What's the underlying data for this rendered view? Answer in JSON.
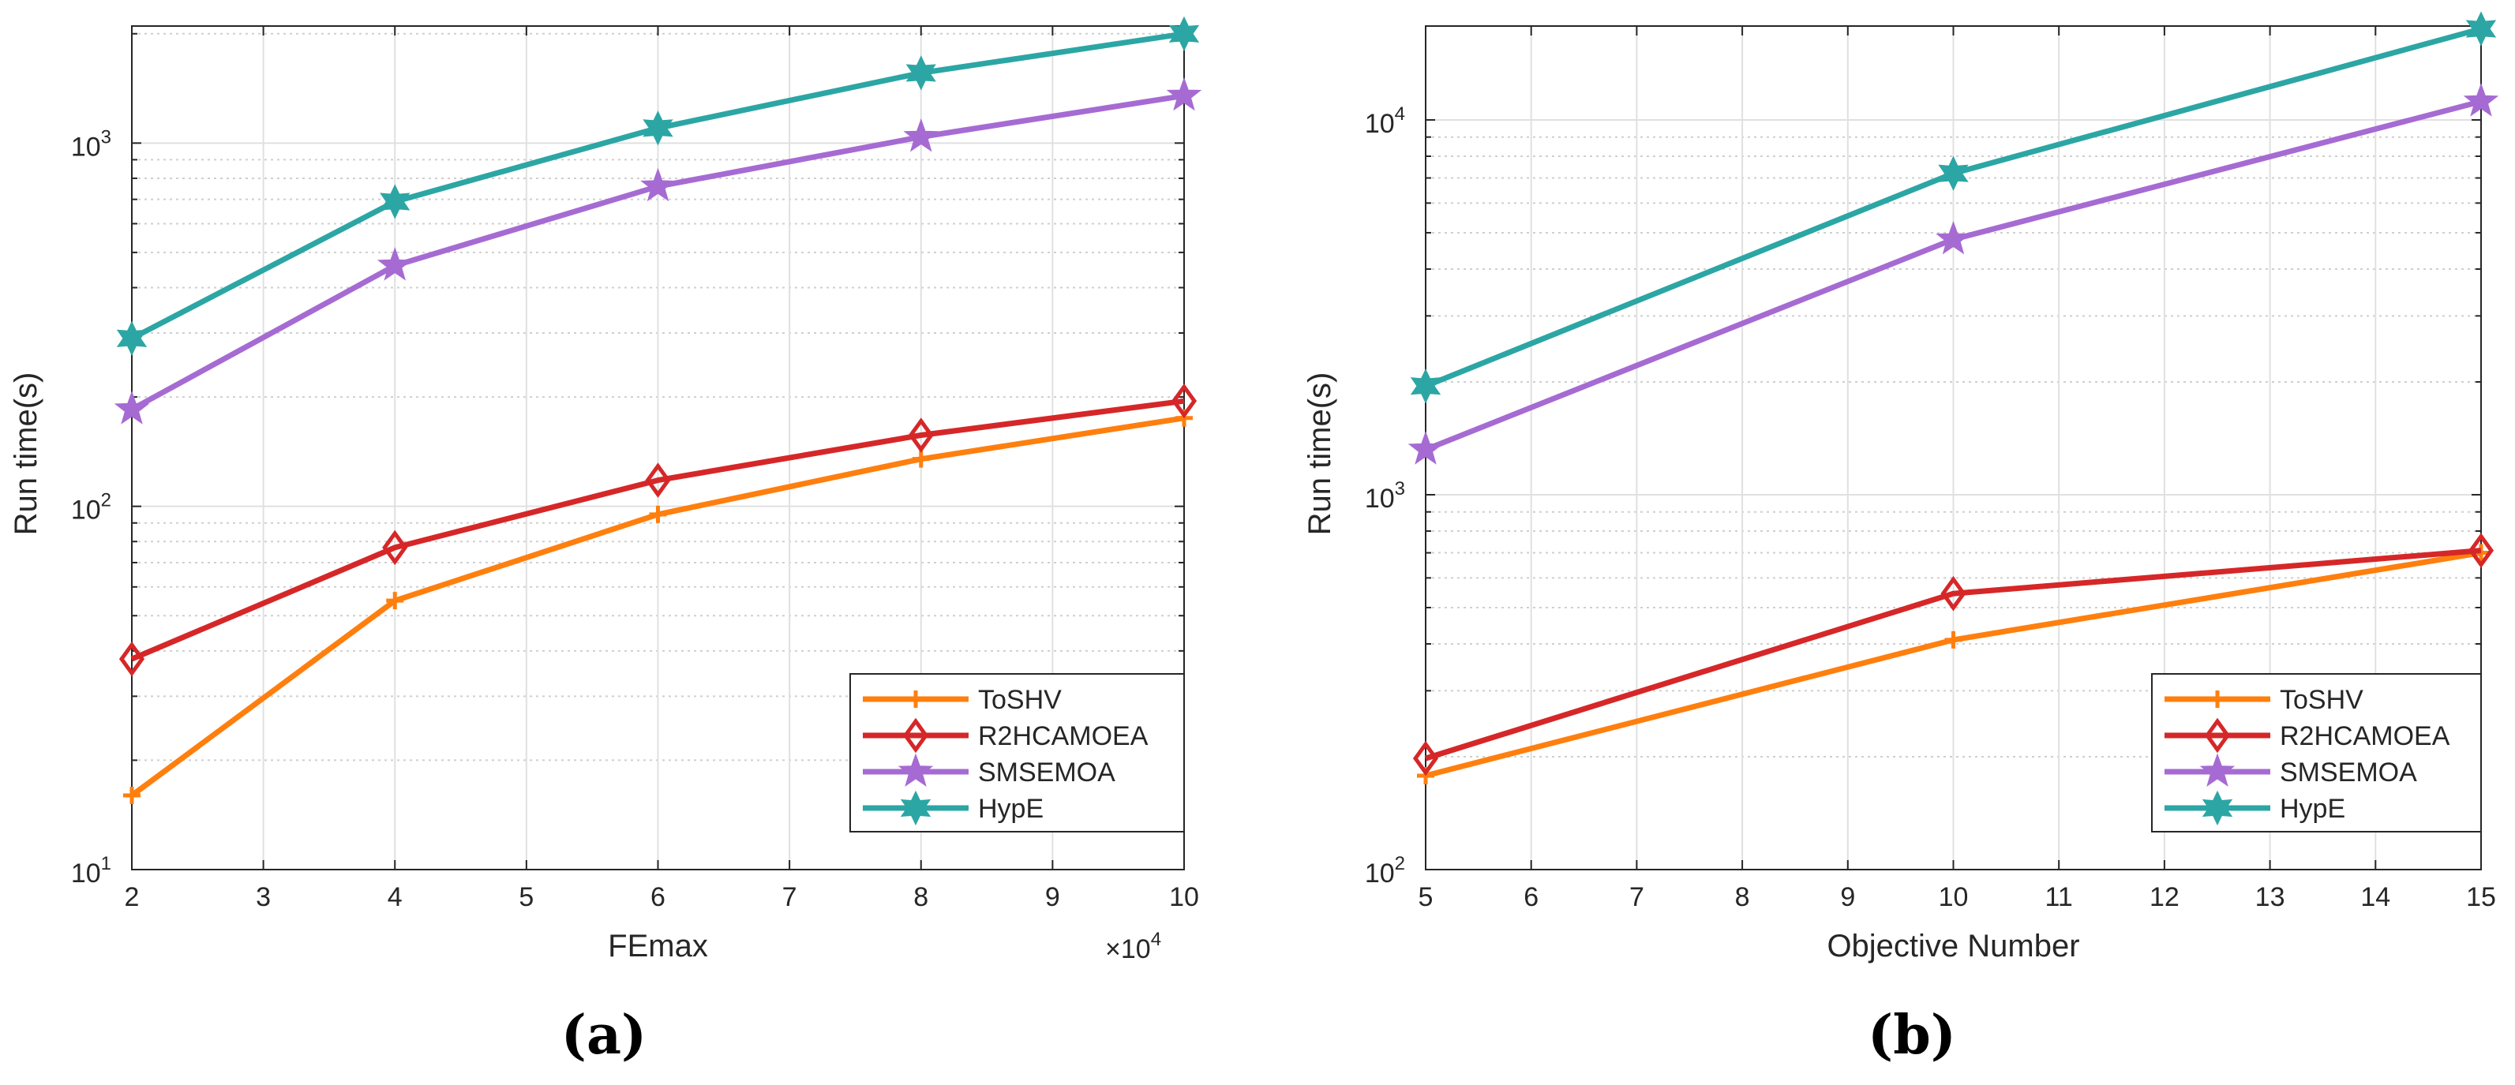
{
  "chart_data": [
    {
      "id": "a",
      "type": "line",
      "caption": "(a)",
      "xlabel": "FEmax",
      "ylabel": "Run time(s)",
      "x_exponent_label": "×10",
      "x_exponent_power": "4",
      "xlim": [
        2,
        10
      ],
      "xticks": [
        "2",
        "3",
        "4",
        "5",
        "6",
        "7",
        "8",
        "9",
        "10"
      ],
      "yscale": "log",
      "ylim": [
        10,
        2100
      ],
      "yticks": [
        {
          "base": "10",
          "exp": "1",
          "value": 10
        },
        {
          "base": "10",
          "exp": "2",
          "value": 100
        },
        {
          "base": "10",
          "exp": "3",
          "value": 1000
        }
      ],
      "legend_position": "bottom-right",
      "x": [
        2,
        4,
        6,
        8,
        10
      ],
      "series": [
        {
          "name": "ToSHV",
          "color": "#FF7F0E",
          "marker": "plus",
          "values": [
            16,
            55,
            95,
            135,
            175
          ]
        },
        {
          "name": "R2HCAMOEA",
          "color": "#D62728",
          "marker": "diamond",
          "values": [
            38,
            77,
            118,
            157,
            195
          ]
        },
        {
          "name": "SMSEMOA",
          "color": "#A66BD3",
          "marker": "star5",
          "values": [
            185,
            460,
            760,
            1040,
            1350
          ]
        },
        {
          "name": "HypE",
          "color": "#2CA6A4",
          "marker": "star6",
          "values": [
            290,
            690,
            1100,
            1560,
            2000
          ]
        }
      ]
    },
    {
      "id": "b",
      "type": "line",
      "caption": "(b)",
      "xlabel": "Objective Number",
      "ylabel": "Run time(s)",
      "xlim": [
        5,
        15
      ],
      "xticks": [
        "5",
        "6",
        "7",
        "8",
        "9",
        "10",
        "11",
        "12",
        "13",
        "14",
        "15"
      ],
      "yscale": "log",
      "ylim": [
        100,
        17800
      ],
      "yticks": [
        {
          "base": "10",
          "exp": "2",
          "value": 100
        },
        {
          "base": "10",
          "exp": "3",
          "value": 1000
        },
        {
          "base": "10",
          "exp": "4",
          "value": 10000
        }
      ],
      "legend_position": "bottom-right",
      "x": [
        5,
        10,
        15
      ],
      "series": [
        {
          "name": "ToSHV",
          "color": "#FF7F0E",
          "marker": "plus",
          "values": [
            178,
            410,
            700
          ]
        },
        {
          "name": "R2HCAMOEA",
          "color": "#D62728",
          "marker": "diamond",
          "values": [
            198,
            545,
            710
          ]
        },
        {
          "name": "SMSEMOA",
          "color": "#A66BD3",
          "marker": "star5",
          "values": [
            1320,
            4800,
            11200
          ]
        },
        {
          "name": "HypE",
          "color": "#2CA6A4",
          "marker": "star6",
          "values": [
            1950,
            7200,
            17500
          ]
        }
      ]
    }
  ]
}
